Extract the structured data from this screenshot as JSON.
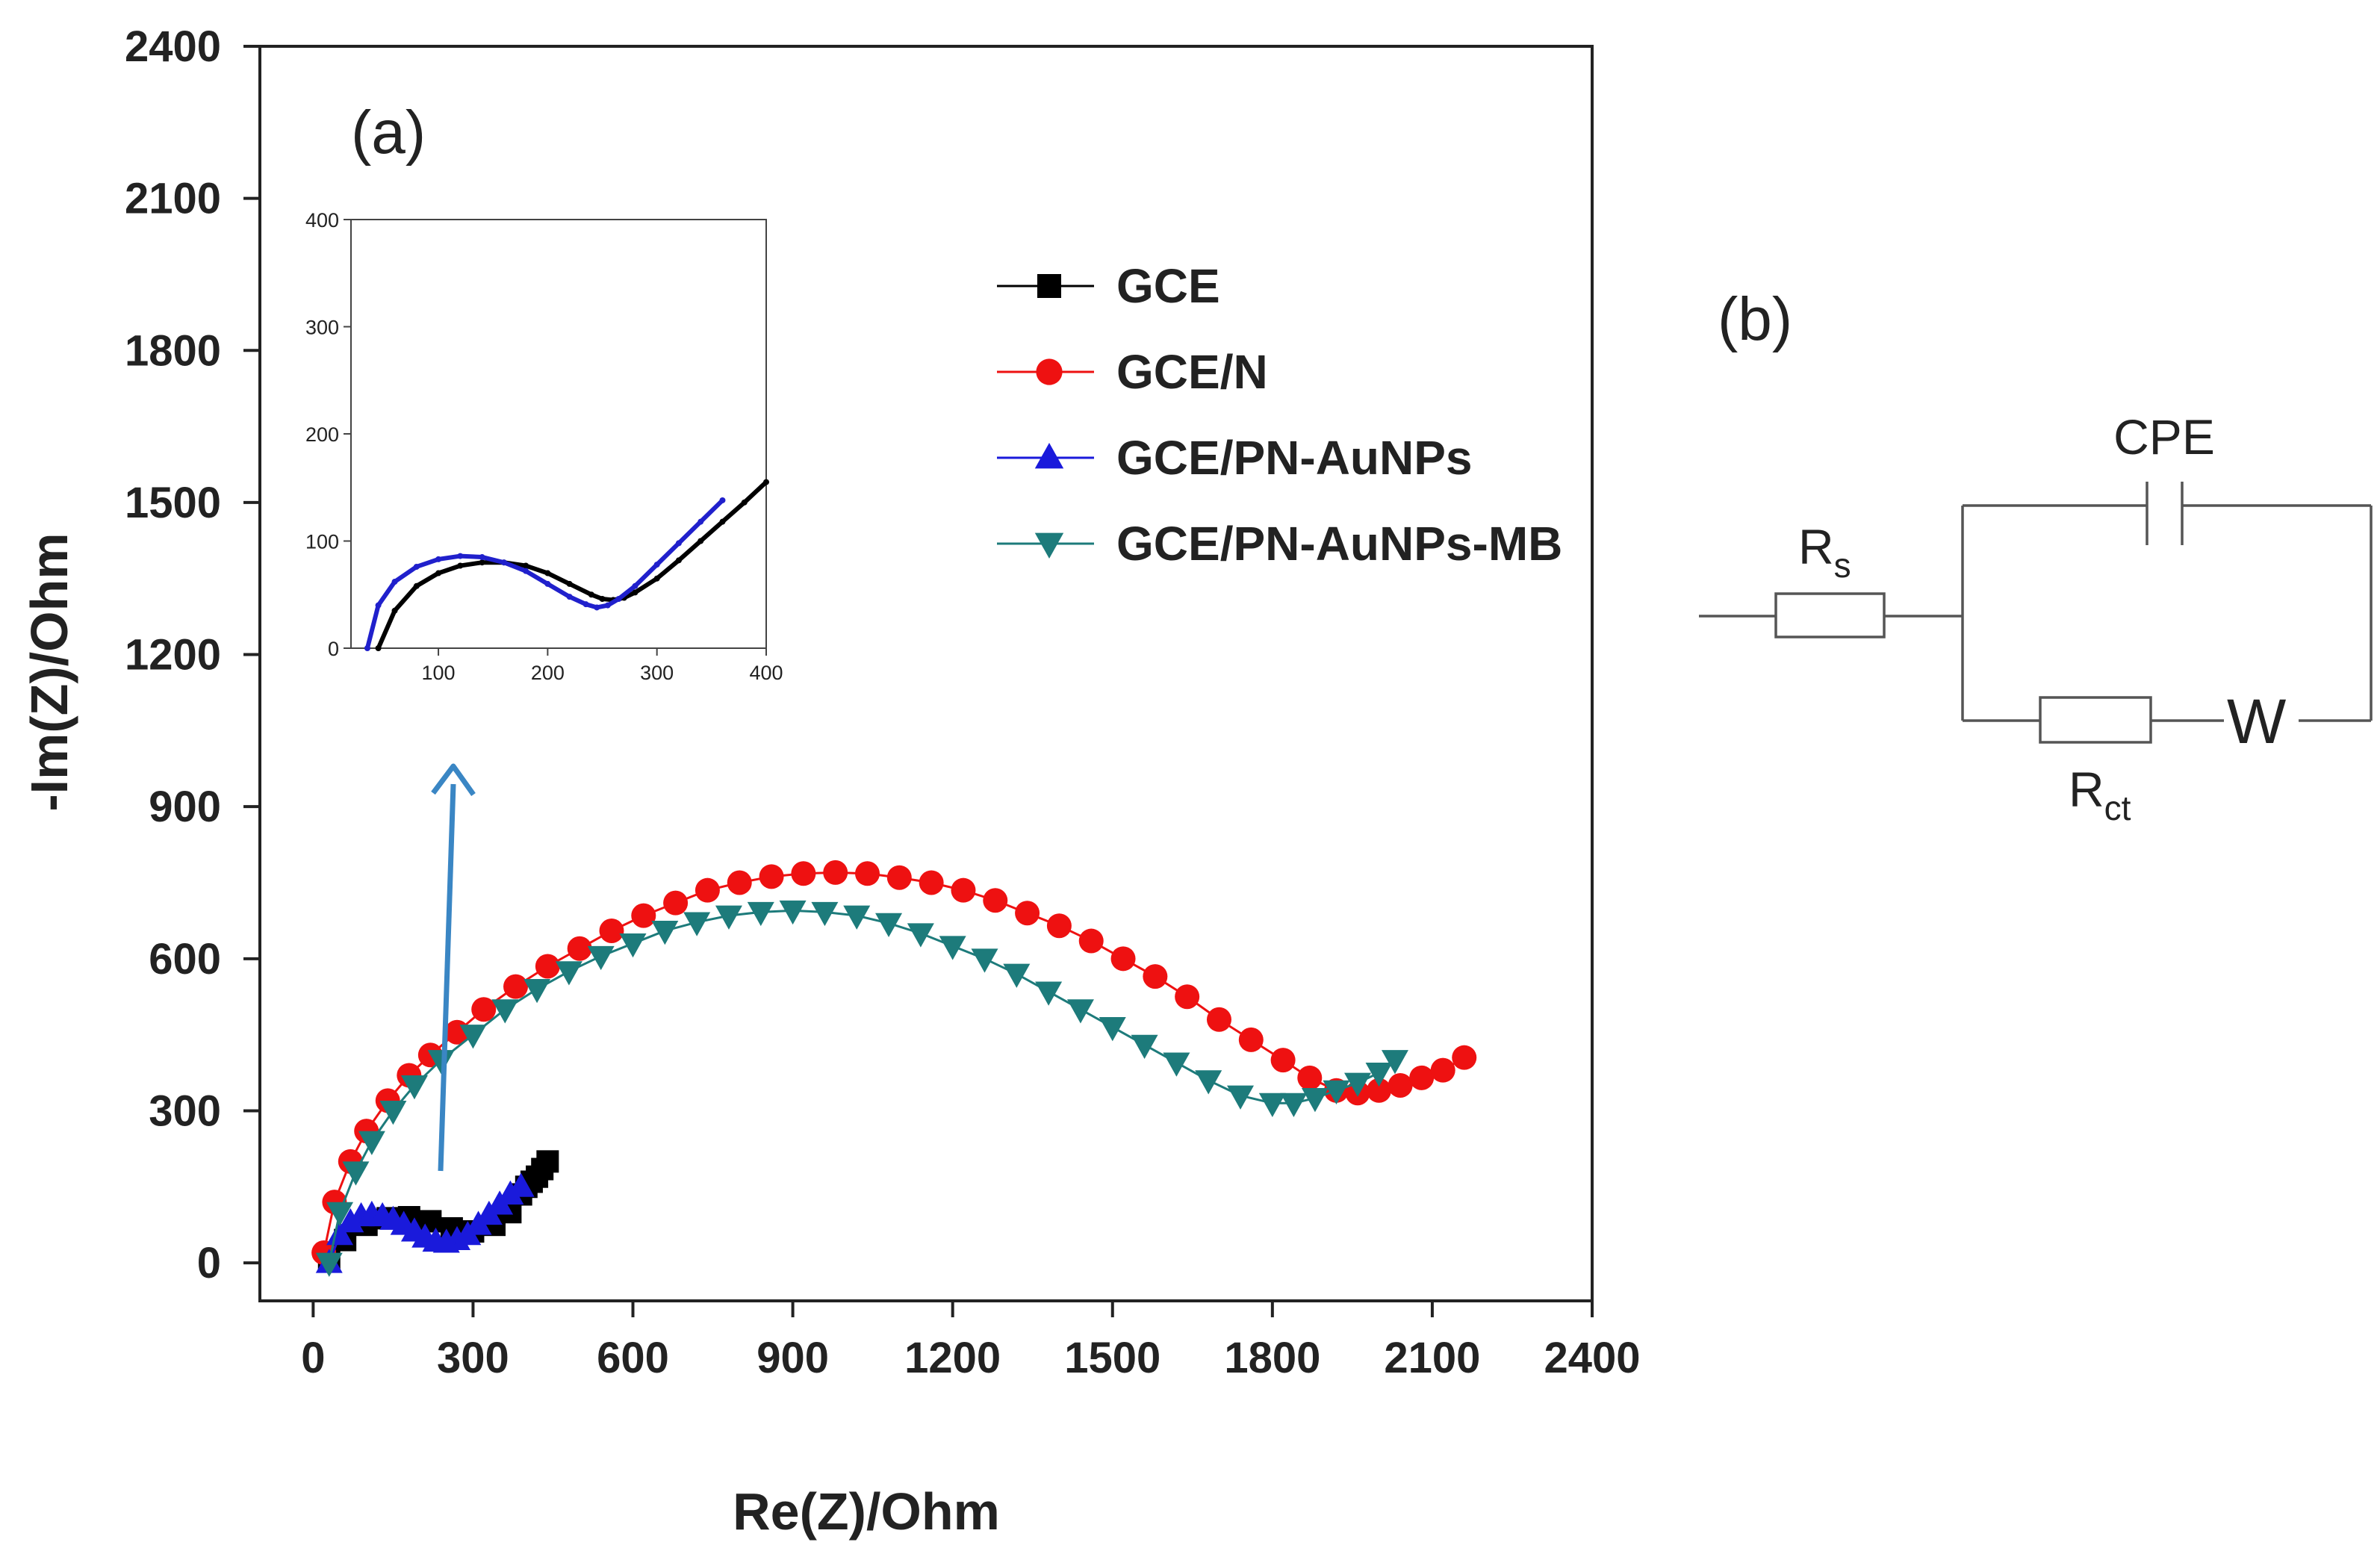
{
  "panels": {
    "a_label": "(a)",
    "b_label": "(b)"
  },
  "chart_data": [
    {
      "type": "scatter",
      "title": "",
      "xlabel": "Re(Z)/Ohm",
      "ylabel": "-Im(Z)/Ohm",
      "xlim": [
        -100,
        2400
      ],
      "ylim": [
        -75,
        2400
      ],
      "xticks": [
        "0",
        "300",
        "600",
        "900",
        "1200",
        "1500",
        "1800",
        "2100",
        "2400"
      ],
      "yticks": [
        "0",
        "300",
        "600",
        "900",
        "1200",
        "1500",
        "1800",
        "2100",
        "2400"
      ],
      "grid": false,
      "legend_position": "upper-right",
      "series": [
        {
          "name": "GCE",
          "marker": "square",
          "color": "#000000",
          "x": [
            30,
            60,
            100,
            140,
            180,
            220,
            260,
            300,
            340,
            370,
            390,
            400,
            410,
            420,
            430,
            440
          ],
          "y": [
            5,
            45,
            75,
            88,
            90,
            82,
            68,
            62,
            75,
            100,
            135,
            150,
            160,
            170,
            185,
            200
          ]
        },
        {
          "name": "GCE/N",
          "marker": "circle",
          "color": "#ee1111",
          "x": [
            20,
            40,
            70,
            100,
            140,
            180,
            220,
            270,
            320,
            380,
            440,
            500,
            560,
            620,
            680,
            740,
            800,
            860,
            920,
            980,
            1040,
            1100,
            1160,
            1220,
            1280,
            1340,
            1400,
            1460,
            1520,
            1580,
            1640,
            1700,
            1760,
            1820,
            1870,
            1920,
            1960,
            2000,
            2040,
            2080,
            2120,
            2160
          ],
          "y": [
            20,
            120,
            200,
            260,
            320,
            370,
            410,
            455,
            500,
            545,
            585,
            620,
            655,
            685,
            710,
            735,
            750,
            762,
            768,
            770,
            768,
            760,
            750,
            735,
            715,
            690,
            665,
            635,
            600,
            565,
            525,
            480,
            440,
            400,
            365,
            340,
            335,
            340,
            350,
            365,
            380,
            405
          ]
        },
        {
          "name": "GCE/PN-AuNPs",
          "marker": "triangle-up",
          "color": "#1a1adb",
          "x": [
            30,
            50,
            70,
            90,
            110,
            130,
            150,
            170,
            190,
            210,
            230,
            250,
            270,
            290,
            310,
            330,
            350,
            370,
            390
          ],
          "y": [
            0,
            55,
            80,
            92,
            95,
            92,
            85,
            75,
            62,
            50,
            42,
            40,
            45,
            55,
            75,
            95,
            115,
            135,
            150
          ]
        },
        {
          "name": "GCE/PN-AuNPs-MB",
          "marker": "triangle-down",
          "color": "#1d7b7b",
          "x": [
            30,
            50,
            80,
            110,
            150,
            190,
            240,
            300,
            360,
            420,
            480,
            540,
            600,
            660,
            720,
            780,
            840,
            900,
            960,
            1020,
            1080,
            1140,
            1200,
            1260,
            1320,
            1380,
            1440,
            1500,
            1560,
            1620,
            1680,
            1740,
            1800,
            1840,
            1880,
            1920,
            1960,
            2000,
            2030
          ],
          "y": [
            0,
            100,
            180,
            240,
            300,
            350,
            400,
            450,
            500,
            540,
            575,
            605,
            630,
            655,
            672,
            685,
            692,
            695,
            692,
            685,
            670,
            650,
            625,
            600,
            570,
            535,
            500,
            465,
            430,
            395,
            360,
            330,
            315,
            315,
            325,
            340,
            355,
            375,
            400
          ]
        }
      ]
    },
    {
      "type": "line",
      "title": "",
      "xlabel": "",
      "ylabel": "",
      "xlim": [
        20,
        400
      ],
      "ylim": [
        0,
        400
      ],
      "xticks": [
        "100",
        "200",
        "300",
        "400"
      ],
      "yticks": [
        "0",
        "100",
        "200",
        "300",
        "400"
      ],
      "grid": false,
      "series": [
        {
          "color": "#000000",
          "x": [
            45,
            60,
            80,
            100,
            120,
            140,
            160,
            180,
            200,
            220,
            240,
            250,
            260,
            270,
            280,
            300,
            320,
            340,
            360,
            380,
            400
          ],
          "y": [
            0,
            35,
            58,
            70,
            77,
            80,
            80,
            77,
            70,
            60,
            50,
            46,
            45,
            47,
            52,
            65,
            82,
            100,
            118,
            136,
            155
          ]
        },
        {
          "color": "#2020cc",
          "x": [
            35,
            45,
            60,
            80,
            100,
            120,
            140,
            160,
            180,
            200,
            220,
            235,
            245,
            255,
            265,
            280,
            300,
            320,
            340,
            360
          ],
          "y": [
            0,
            40,
            62,
            76,
            83,
            86,
            85,
            80,
            72,
            60,
            48,
            41,
            38,
            40,
            46,
            58,
            78,
            98,
            118,
            138
          ]
        }
      ]
    }
  ],
  "circuit": {
    "rs_main": "R",
    "rs_sub": "s",
    "rct_main": "R",
    "rct_sub": "ct",
    "cpe": "CPE",
    "w": "W"
  }
}
